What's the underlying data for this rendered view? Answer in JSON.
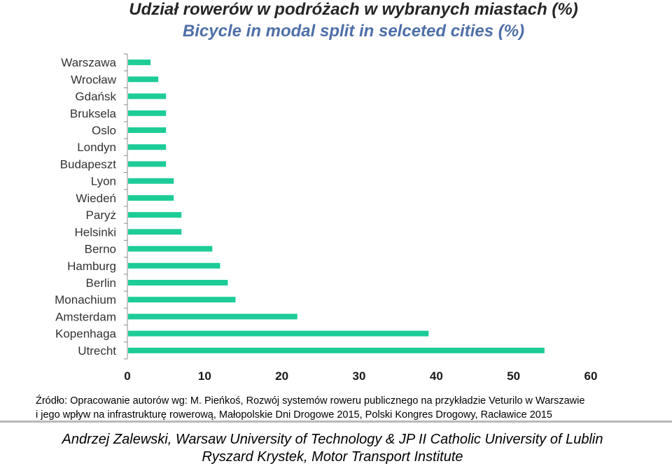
{
  "chart_data": {
    "type": "bar",
    "orientation": "horizontal",
    "title": "Udział rowerów w podróżach w wybranych miastach (%)",
    "subtitle": "Bicycle in modal split in selceted cities (%)",
    "categories": [
      "Warszawa",
      "Wrocław",
      "Gdańsk",
      "Bruksela",
      "Oslo",
      "Londyn",
      "Budapeszt",
      "Lyon",
      "Wiedeń",
      "Paryż",
      "Helsinki",
      "Berno",
      "Hamburg",
      "Berlin",
      "Monachium",
      "Amsterdam",
      "Kopenhaga",
      "Utrecht"
    ],
    "values": [
      3,
      4,
      5,
      5,
      5,
      5,
      5,
      6,
      6,
      7,
      7,
      11,
      12,
      13,
      14,
      22,
      39,
      54
    ],
    "xlim": [
      0,
      60
    ],
    "xticks": [
      "0",
      "10",
      "20",
      "30",
      "40",
      "50",
      "60"
    ],
    "xlabel": "",
    "ylabel": "",
    "grid": false,
    "legend": "none",
    "bar_color": "#1dcc96"
  },
  "source": {
    "line1": "Źródło: Opracowanie autorów  wg: M. Pieńkoś, Rozwój systemów roweru publicznego na przykładzie Veturilo w Warszawie",
    "line2": "i jego wpływ na infrastrukturę rowerową, Małopolskie Dni Drogowe 2015, Polski Kongres Drogowy, Racławice 2015"
  },
  "authors": {
    "line1": "Andrzej Zalewski, Warsaw University of Technology & JP II Catholic University of Lublin",
    "line2": "Ryszard Krystek, Motor Transport Institute"
  }
}
